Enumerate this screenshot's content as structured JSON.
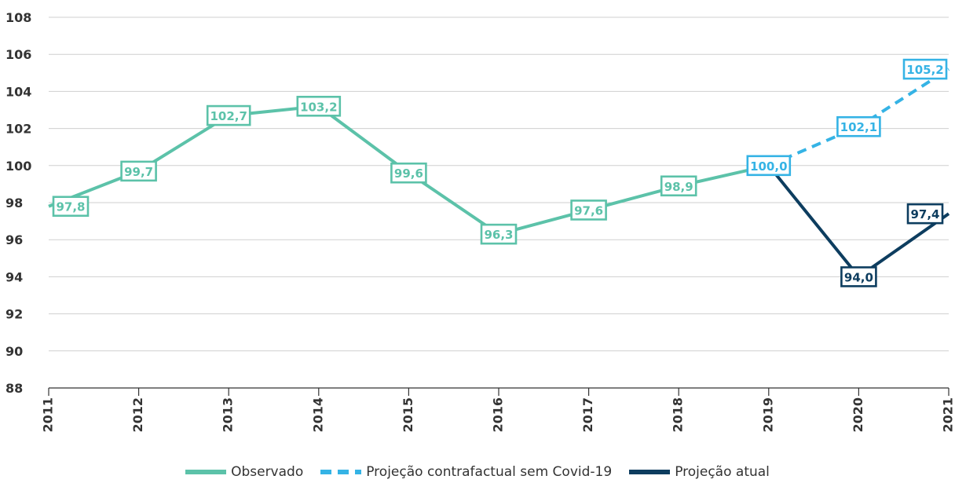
{
  "chart_data": {
    "type": "line",
    "title": "",
    "xlabel": "",
    "ylabel": "",
    "x": [
      "2011",
      "2012",
      "2013",
      "2014",
      "2015",
      "2016",
      "2017",
      "2018",
      "2019",
      "2020",
      "2021"
    ],
    "ylim": [
      88,
      108
    ],
    "yticks": [
      "88",
      "90",
      "92",
      "94",
      "96",
      "98",
      "100",
      "102",
      "104",
      "106",
      "108"
    ],
    "grid": true,
    "legend_position": "bottom",
    "series": [
      {
        "name": "Observado",
        "style": "solid",
        "color": "#5cc2a9",
        "x": [
          "2011",
          "2012",
          "2013",
          "2014",
          "2015",
          "2016",
          "2017",
          "2018",
          "2019"
        ],
        "values": [
          97.8,
          99.7,
          102.7,
          103.2,
          99.6,
          96.3,
          97.6,
          98.9,
          100.0
        ],
        "labels": [
          "97,8",
          "99,7",
          "102,7",
          "103,2",
          "99,6",
          "96,3",
          "97,6",
          "98,9",
          "100,0"
        ]
      },
      {
        "name": "Projeção contrafactual sem Covid-19",
        "style": "dashed",
        "color": "#35b3e5",
        "x": [
          "2019",
          "2020",
          "2021"
        ],
        "values": [
          100.0,
          102.1,
          105.2
        ],
        "labels": [
          "100,0",
          "102,1",
          "105,2"
        ]
      },
      {
        "name": "Projeção atual",
        "style": "solid",
        "color": "#0d3d5f",
        "x": [
          "2019",
          "2020",
          "2021"
        ],
        "values": [
          100.0,
          94.0,
          97.4
        ],
        "labels": [
          "",
          "94,0",
          "97,4"
        ]
      }
    ]
  }
}
